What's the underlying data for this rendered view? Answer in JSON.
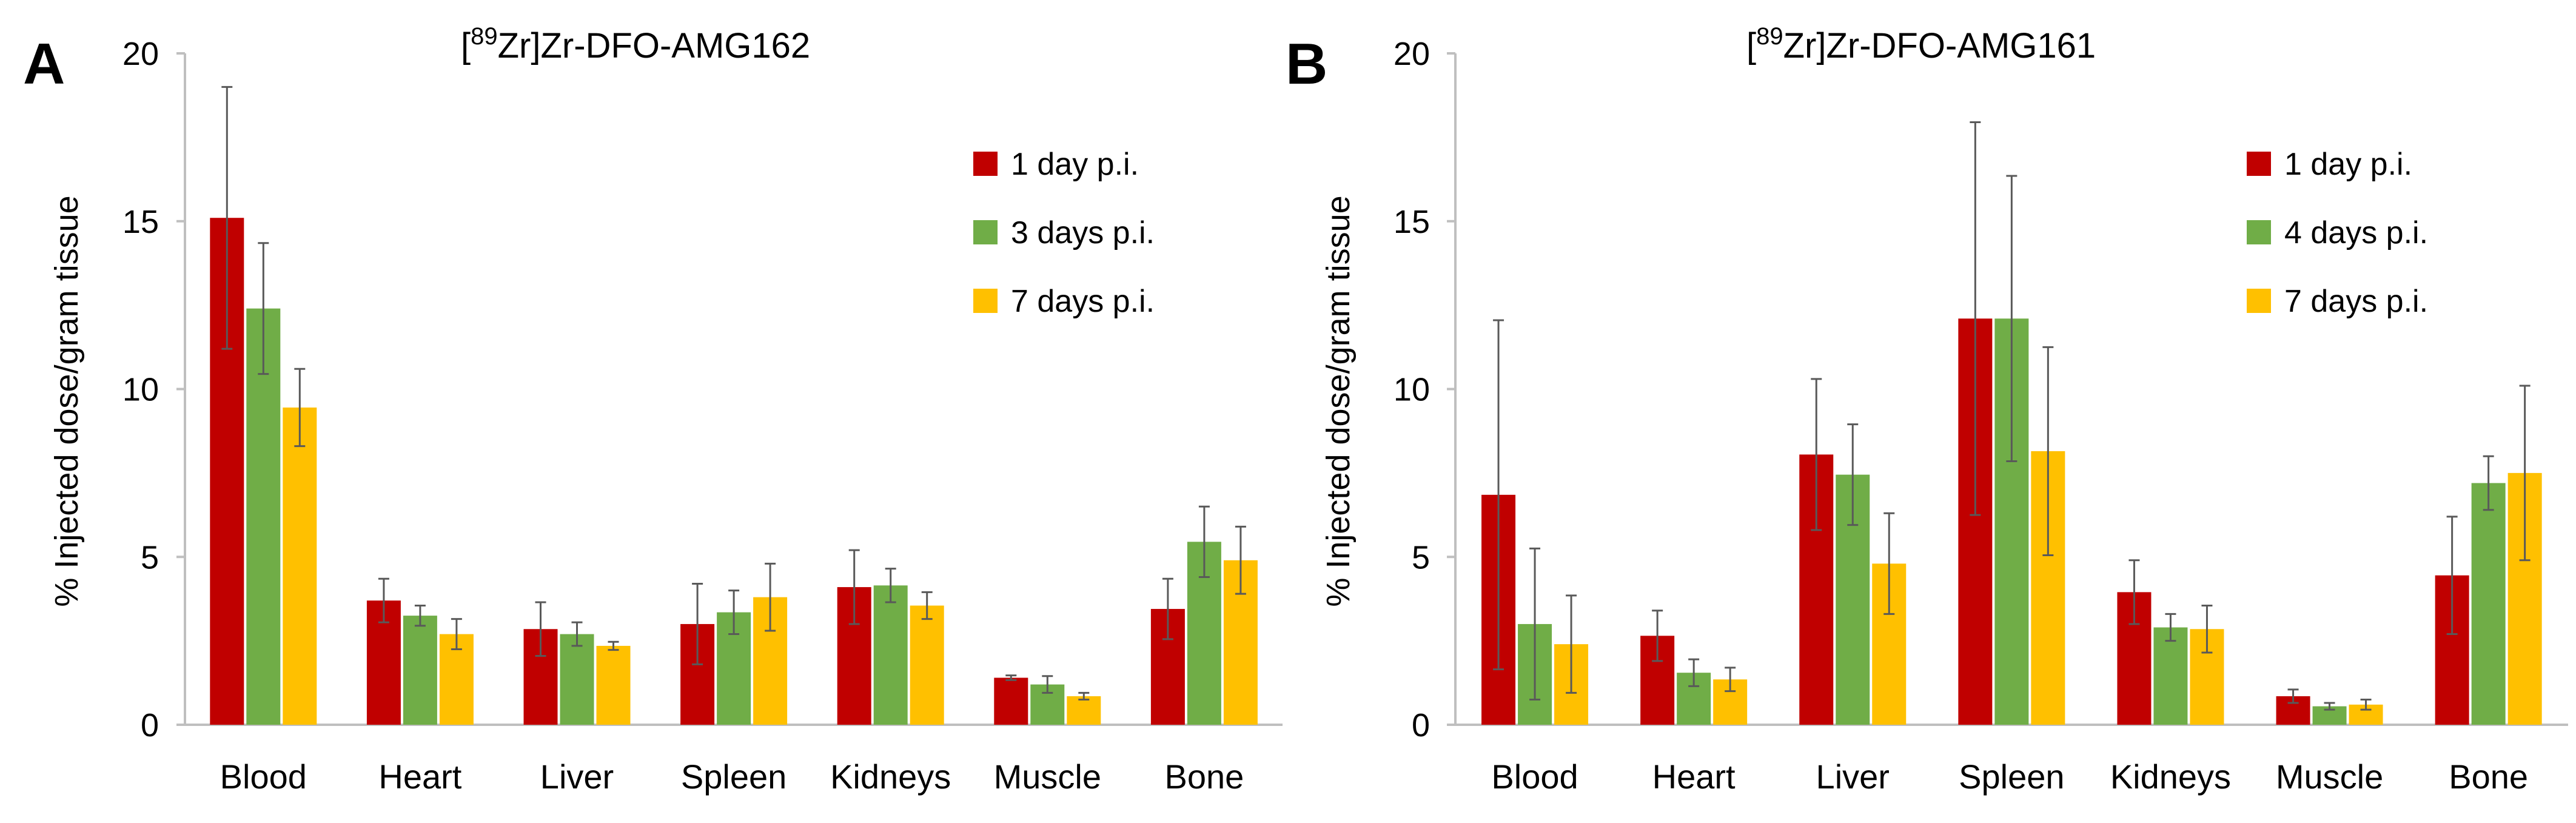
{
  "colors": {
    "series": [
      "#C00000",
      "#70AD47",
      "#FFC000"
    ],
    "axis": "#bfbfbf",
    "error": "#595959",
    "text": "#000000"
  },
  "chart_data": [
    {
      "type": "bar",
      "panel_label": "A",
      "title_sup": "89",
      "title_text": "Zr]Zr-DFO-AMG162",
      "ylabel": "% Injected dose/gram tissue",
      "xlabel": "",
      "ylim": [
        0,
        20
      ],
      "yticks": [
        "0",
        "5",
        "10",
        "15",
        "20"
      ],
      "grid": false,
      "legend_position": "upper-right",
      "categories": [
        "Blood",
        "Heart",
        "Liver",
        "Spleen",
        "Kidneys",
        "Muscle",
        "Bone"
      ],
      "series": [
        {
          "name": "1 day p.i.",
          "values": [
            15.1,
            3.7,
            2.85,
            3.0,
            4.1,
            1.4,
            3.45
          ],
          "errors": [
            3.9,
            0.65,
            0.8,
            1.2,
            1.1,
            0.07,
            0.9
          ]
        },
        {
          "name": "3 days p.i.",
          "values": [
            12.4,
            3.25,
            2.7,
            3.35,
            4.15,
            1.2,
            5.45
          ],
          "errors": [
            1.95,
            0.3,
            0.35,
            0.65,
            0.5,
            0.25,
            1.05
          ]
        },
        {
          "name": "7 days p.i.",
          "values": [
            9.45,
            2.7,
            2.35,
            3.8,
            3.55,
            0.85,
            4.9
          ],
          "errors": [
            1.15,
            0.45,
            0.12,
            1.0,
            0.4,
            0.1,
            1.0
          ]
        }
      ]
    },
    {
      "type": "bar",
      "panel_label": "B",
      "title_sup": "89",
      "title_text": "Zr]Zr-DFO-AMG161",
      "ylabel": "% Injected dose/gram tissue",
      "xlabel": "",
      "ylim": [
        0,
        20
      ],
      "yticks": [
        "0",
        "5",
        "10",
        "15",
        "20"
      ],
      "grid": false,
      "legend_position": "upper-right",
      "categories": [
        "Blood",
        "Heart",
        "Liver",
        "Spleen",
        "Kidneys",
        "Muscle",
        "Bone"
      ],
      "series": [
        {
          "name": "1 day p.i.",
          "values": [
            6.85,
            2.65,
            8.05,
            12.1,
            3.95,
            0.85,
            4.45
          ],
          "errors": [
            5.2,
            0.75,
            2.25,
            5.85,
            0.95,
            0.2,
            1.75
          ]
        },
        {
          "name": "4 days p.i.",
          "values": [
            3.0,
            1.55,
            7.45,
            12.1,
            2.9,
            0.55,
            7.2
          ],
          "errors": [
            2.25,
            0.4,
            1.5,
            4.25,
            0.4,
            0.1,
            0.8
          ]
        },
        {
          "name": "7 days p.i.",
          "values": [
            2.4,
            1.35,
            4.8,
            8.15,
            2.85,
            0.6,
            7.5
          ],
          "errors": [
            1.45,
            0.35,
            1.5,
            3.1,
            0.7,
            0.15,
            2.6
          ]
        }
      ]
    }
  ]
}
